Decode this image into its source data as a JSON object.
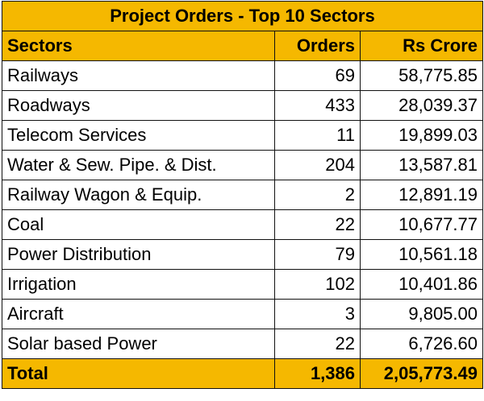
{
  "chart_data": {
    "type": "table",
    "title": "Project Orders - Top 10 Sectors",
    "columns": [
      "Sectors",
      "Orders",
      "Rs Crore"
    ],
    "rows": [
      {
        "sector": "Railways",
        "orders": "69",
        "value": "58,775.85"
      },
      {
        "sector": "Roadways",
        "orders": "433",
        "value": "28,039.37"
      },
      {
        "sector": "Telecom Services",
        "orders": "11",
        "value": "19,899.03"
      },
      {
        "sector": "Water & Sew. Pipe. & Dist.",
        "orders": "204",
        "value": "13,587.81"
      },
      {
        "sector": "Railway Wagon & Equip.",
        "orders": "2",
        "value": "12,891.19"
      },
      {
        "sector": "Coal",
        "orders": "22",
        "value": "10,677.77"
      },
      {
        "sector": "Power Distribution",
        "orders": "79",
        "value": "10,561.18"
      },
      {
        "sector": "Irrigation",
        "orders": "102",
        "value": "10,401.86"
      },
      {
        "sector": "Aircraft",
        "orders": "3",
        "value": "9,805.00"
      },
      {
        "sector": "Solar based Power",
        "orders": "22",
        "value": "6,726.60"
      }
    ],
    "total": {
      "label": "Total",
      "orders": "1,386",
      "value": "2,05,773.49"
    }
  },
  "colors": {
    "header_fill": "#f5b800",
    "border": "#111111"
  }
}
